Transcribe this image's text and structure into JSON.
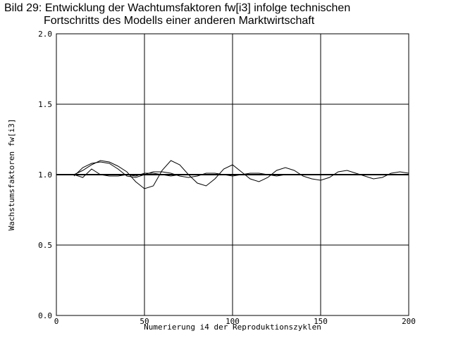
{
  "chart_data": {
    "type": "line",
    "title": [
      "Bild 29: Entwicklung der Wachtumsfaktoren fw[i3] infolge technischen",
      "Fortschritts des Modells einer anderen Marktwirtschaft"
    ],
    "x_label": "Numerierung i4 der Reproduktionszyklen",
    "y_label": "Wachstumsfaktoren fw[i3]",
    "xlim": [
      0,
      200
    ],
    "xticks": [
      0,
      50,
      100,
      150,
      200
    ],
    "ylim": [
      0,
      2
    ],
    "yticks": [
      {
        "value": 0,
        "label": "0.0"
      },
      {
        "value": 0.5,
        "label": "0.5"
      },
      {
        "value": 1,
        "label": "1.0"
      },
      {
        "value": 1.5,
        "label": "1.5"
      },
      {
        "value": 2,
        "label": "2.0"
      }
    ],
    "grid": true,
    "x": [
      10,
      15,
      20,
      25,
      30,
      35,
      40,
      45,
      50,
      55,
      60,
      65,
      70,
      75,
      80,
      85,
      90,
      95,
      100,
      105,
      110,
      115,
      120,
      125,
      130,
      135,
      140,
      145,
      150,
      155,
      160,
      165,
      170,
      175,
      180,
      185,
      190,
      195,
      200
    ],
    "series": [
      {
        "color": "#000000",
        "values": [
          1.0,
          1.03,
          1.07,
          1.1,
          1.09,
          1.06,
          1.02,
          0.95,
          0.9,
          0.92,
          1.03,
          1.1,
          1.07,
          1.0,
          0.94,
          0.92,
          0.97,
          1.04,
          1.07,
          1.02,
          0.97,
          0.95,
          0.98,
          1.03,
          1.05,
          1.03,
          0.99,
          0.97,
          0.96,
          0.98,
          1.02,
          1.03,
          1.01,
          0.99,
          0.97,
          0.98,
          1.01,
          1.02,
          1.01
        ]
      },
      {
        "color": "#000000",
        "values": [
          0.99,
          1.05,
          1.08,
          1.09,
          1.08,
          1.04,
          0.99,
          0.98,
          1.0,
          1.02,
          1.02,
          1.01,
          0.99,
          0.98,
          0.99,
          1.01,
          1.01,
          1.0,
          0.99,
          1.0,
          1.01,
          1.01,
          1.0,
          0.99,
          1.0,
          1.0,
          1.0,
          1.0,
          1.0,
          1.0,
          1.0,
          1.0,
          1.0,
          1.0,
          1.0,
          1.0,
          1.0,
          1.0,
          1.0
        ]
      },
      {
        "color": "#000000",
        "values": [
          1.0,
          0.98,
          1.04,
          1.0,
          0.99,
          0.99,
          1.0,
          0.99,
          1.01,
          1.01,
          1.0,
          0.99,
          1.0,
          1.0,
          1.0,
          1.0,
          1.0,
          1.0,
          1.0,
          1.0,
          1.0,
          1.0,
          1.0,
          1.0,
          1.0,
          1.0,
          1.0,
          1.0,
          1.0,
          1.0,
          1.0,
          1.0,
          1.0,
          1.0,
          1.0,
          1.0,
          1.0,
          1.0,
          1.0
        ]
      }
    ],
    "baseline": 1.0
  }
}
